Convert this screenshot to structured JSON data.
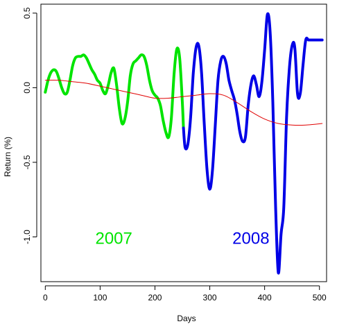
{
  "chart_data": {
    "type": "line",
    "title": "",
    "xlabel": "Days",
    "ylabel": "Return (%)",
    "xlim": [
      -8,
      513
    ],
    "ylim": [
      -1.3,
      0.56
    ],
    "x_ticks": [
      0,
      100,
      200,
      300,
      400,
      500
    ],
    "y_ticks": [
      -1.0,
      -0.5,
      0.0,
      0.5
    ],
    "y_tick_labels": [
      "-1.0",
      "-0.5",
      "0.0",
      "0.5"
    ],
    "grid": false,
    "legend": "none",
    "series": [
      {
        "name": "2007",
        "color": "#00e400",
        "width": 4,
        "x": [
          0,
          5,
          10,
          15,
          20,
          25,
          30,
          35,
          40,
          45,
          50,
          55,
          60,
          65,
          70,
          75,
          80,
          85,
          90,
          95,
          100,
          105,
          110,
          115,
          120,
          125,
          130,
          135,
          140,
          145,
          150,
          155,
          160,
          165,
          170,
          175,
          180,
          185,
          190,
          195,
          200,
          205,
          210,
          215,
          220,
          225,
          230,
          235,
          240,
          245,
          250,
          252
        ],
        "y": [
          -0.03,
          0.05,
          0.1,
          0.12,
          0.11,
          0.06,
          0.0,
          -0.04,
          -0.03,
          0.05,
          0.15,
          0.2,
          0.21,
          0.21,
          0.22,
          0.2,
          0.16,
          0.12,
          0.09,
          0.05,
          0.03,
          -0.02,
          -0.04,
          0.02,
          0.1,
          0.13,
          0.02,
          -0.14,
          -0.24,
          -0.21,
          -0.1,
          0.08,
          0.16,
          0.18,
          0.2,
          0.22,
          0.21,
          0.15,
          0.05,
          -0.02,
          -0.05,
          -0.07,
          -0.12,
          -0.22,
          -0.3,
          -0.33,
          -0.2,
          0.1,
          0.26,
          0.2,
          -0.1,
          -0.27
        ]
      },
      {
        "name": "2008",
        "color": "#0000e6",
        "width": 4,
        "x": [
          252,
          255,
          260,
          265,
          270,
          275,
          280,
          285,
          290,
          295,
          300,
          305,
          310,
          315,
          320,
          325,
          330,
          335,
          340,
          345,
          350,
          355,
          360,
          365,
          370,
          375,
          380,
          385,
          390,
          395,
          400,
          405,
          410,
          415,
          420,
          425,
          430,
          435,
          440,
          445,
          450,
          455,
          460,
          465,
          470,
          475,
          480,
          485,
          490,
          495,
          500,
          505
        ],
        "y": [
          -0.27,
          -0.4,
          -0.38,
          -0.2,
          0.1,
          0.27,
          0.28,
          0.1,
          -0.25,
          -0.55,
          -0.68,
          -0.55,
          -0.25,
          0.05,
          0.18,
          0.21,
          0.16,
          0.05,
          -0.02,
          -0.08,
          -0.18,
          -0.3,
          -0.36,
          -0.33,
          -0.12,
          0.02,
          0.08,
          0.02,
          -0.06,
          0.04,
          0.25,
          0.49,
          0.38,
          -0.1,
          -0.8,
          -1.24,
          -0.98,
          -0.8,
          -0.2,
          0.12,
          0.28,
          0.27,
          -0.04,
          -0.04,
          0.15,
          0.32,
          0.32,
          0.32,
          0.32,
          0.32,
          0.32,
          0.32
        ]
      },
      {
        "name": "",
        "color": "#e00000",
        "width": 1,
        "x": [
          0,
          25,
          50,
          75,
          100,
          125,
          150,
          175,
          200,
          225,
          250,
          275,
          300,
          325,
          350,
          375,
          400,
          425,
          450,
          475,
          505
        ],
        "y": [
          0.05,
          0.05,
          0.04,
          0.03,
          0.01,
          -0.01,
          -0.03,
          -0.05,
          -0.07,
          -0.07,
          -0.06,
          -0.05,
          -0.04,
          -0.05,
          -0.1,
          -0.16,
          -0.21,
          -0.24,
          -0.25,
          -0.25,
          -0.24
        ]
      }
    ],
    "annotations": [
      {
        "text": "2007",
        "x": 125,
        "y": -1.01,
        "color": "#00e400"
      },
      {
        "text": "2008",
        "x": 375,
        "y": -1.01,
        "color": "#0000e6"
      }
    ]
  }
}
